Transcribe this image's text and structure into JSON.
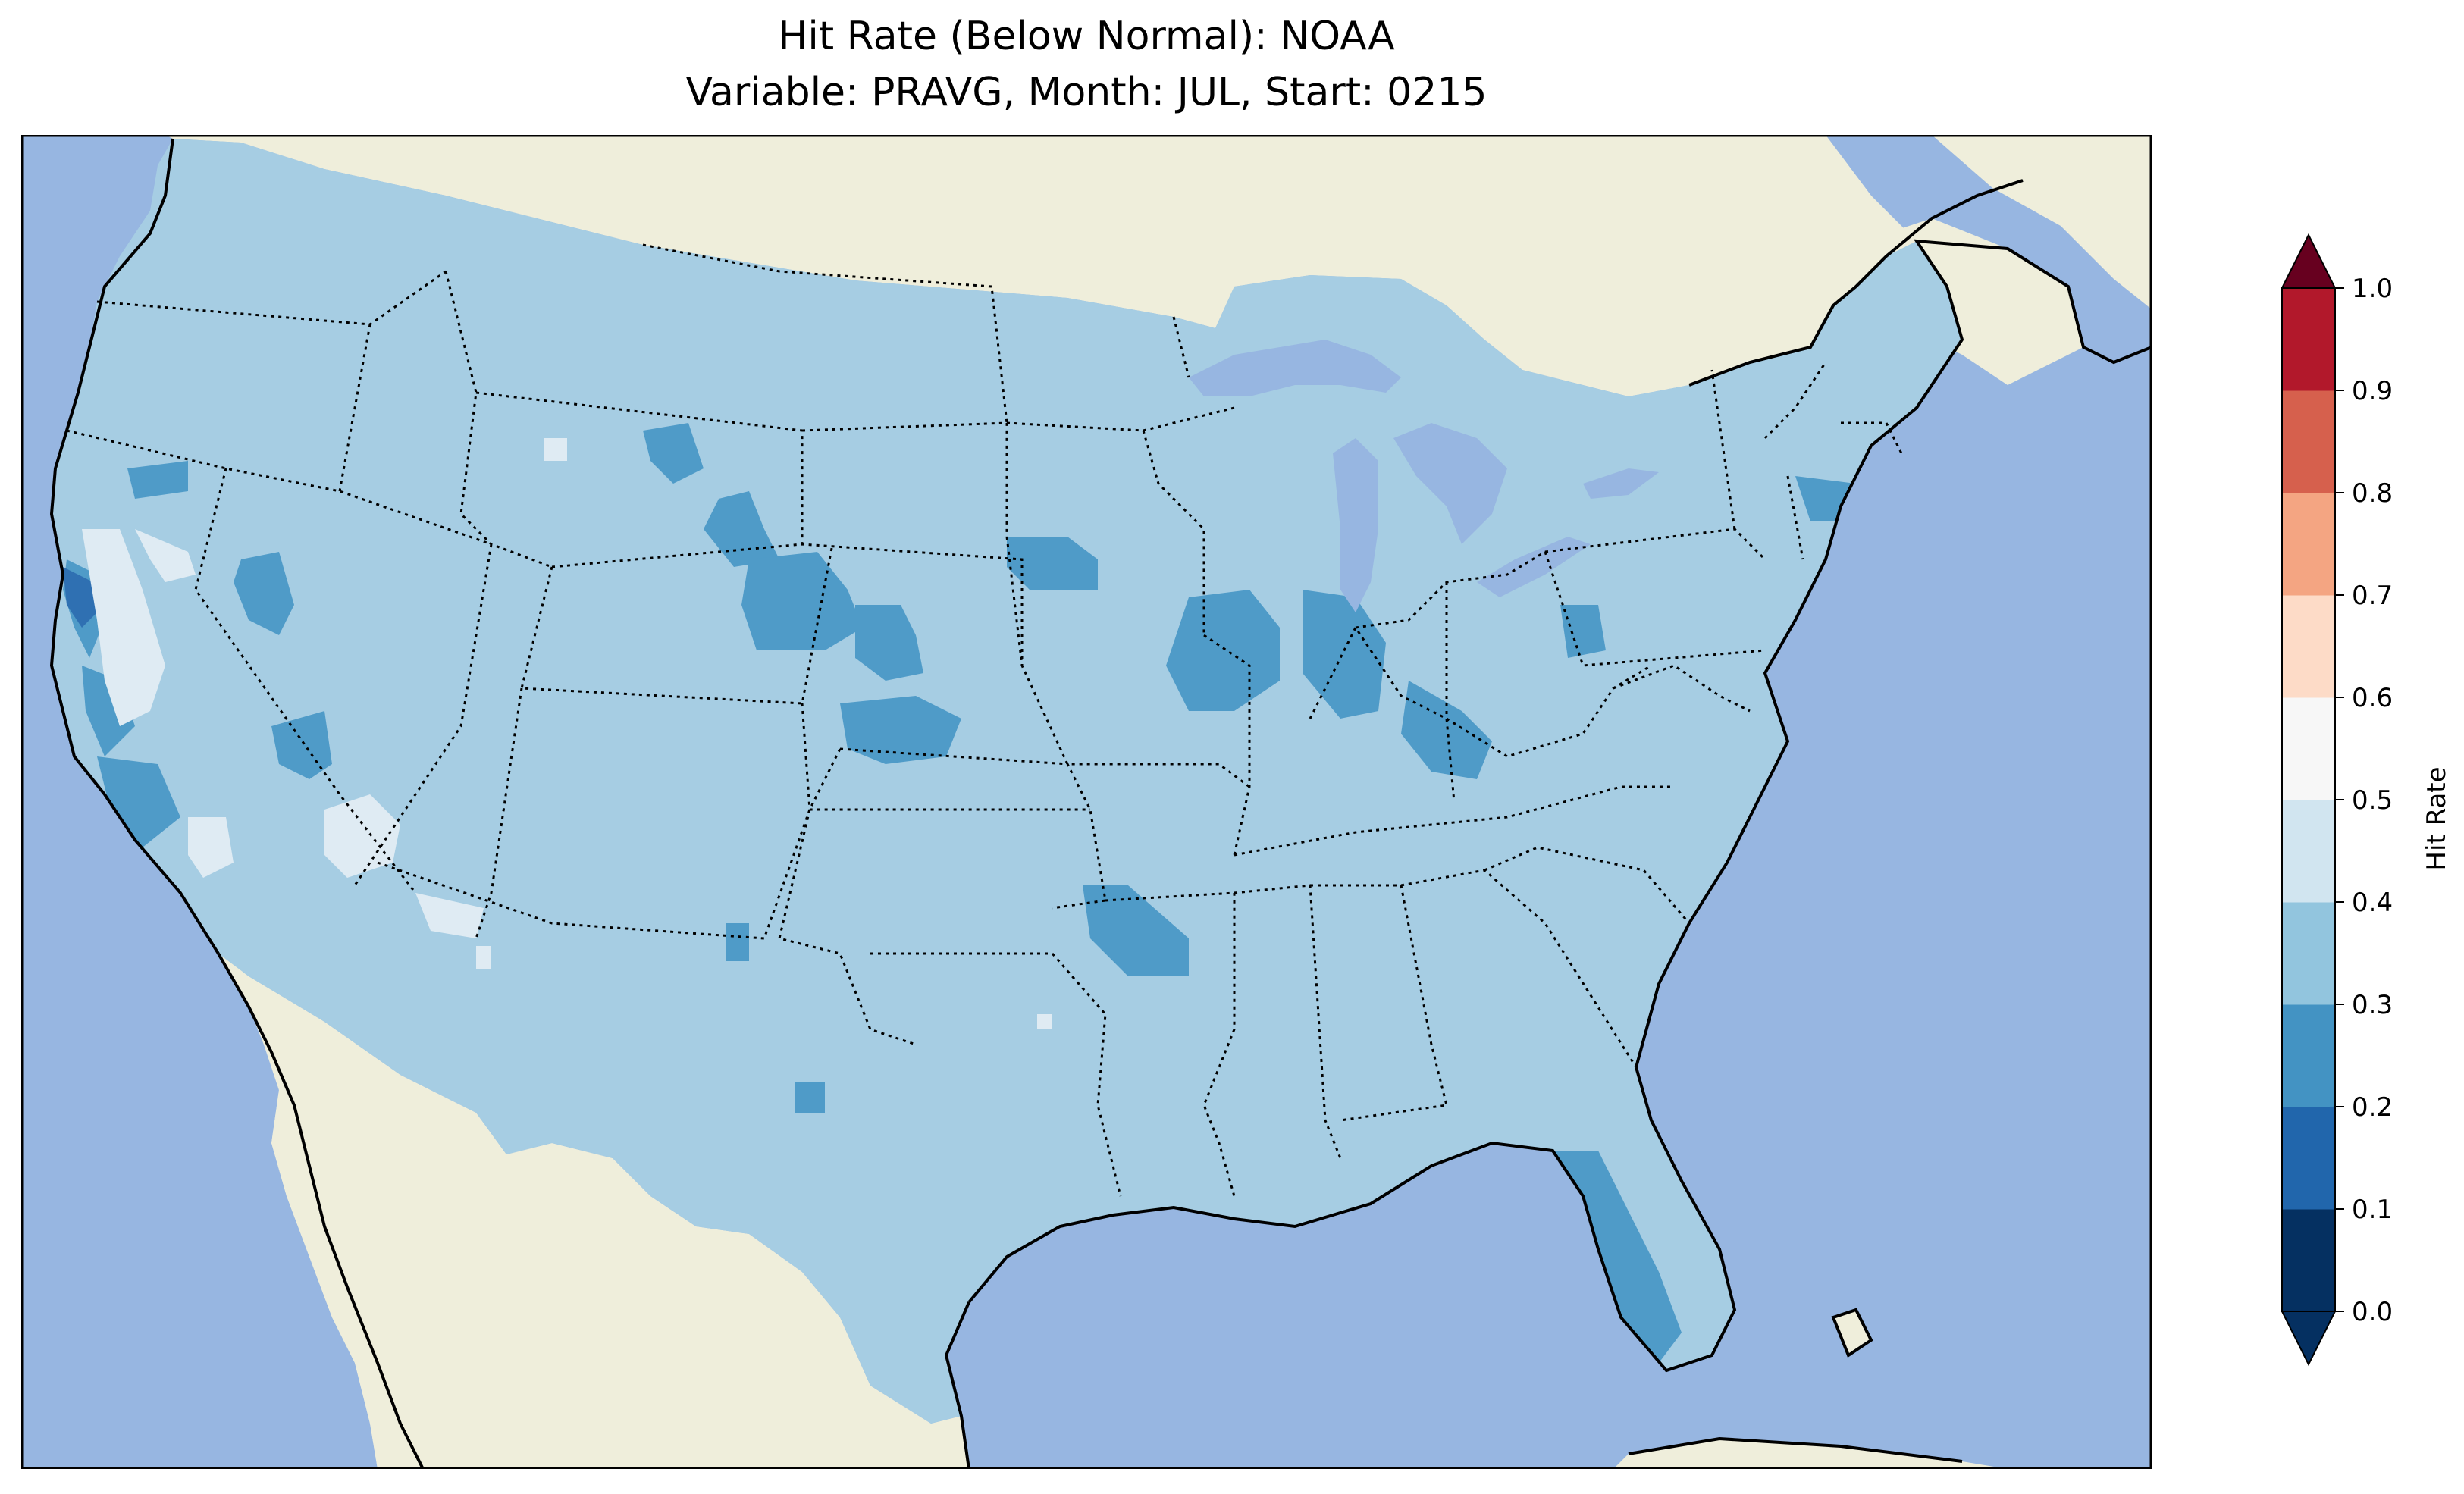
{
  "title_line1": "Hit Rate (Below Normal): NOAA",
  "title_line2": "Variable: PRAVG, Month: JUL, Start: 0215",
  "colors": {
    "ocean": "#97b6e1",
    "land": "#efeedb",
    "lakes": "#97b6e1"
  },
  "colorbar": {
    "label": "Hit Rate",
    "ticks": [
      "0.0",
      "0.1",
      "0.2",
      "0.3",
      "0.4",
      "0.5",
      "0.6",
      "0.7",
      "0.8",
      "0.9",
      "1.0"
    ],
    "bins": [
      {
        "range": [
          0.0,
          0.1
        ],
        "color": "#053061"
      },
      {
        "range": [
          0.1,
          0.2
        ],
        "color": "#2166ac"
      },
      {
        "range": [
          0.2,
          0.3
        ],
        "color": "#4393c3"
      },
      {
        "range": [
          0.3,
          0.4
        ],
        "color": "#92c5de"
      },
      {
        "range": [
          0.4,
          0.5
        ],
        "color": "#d1e5f0"
      },
      {
        "range": [
          0.5,
          0.6
        ],
        "color": "#f7f7f7"
      },
      {
        "range": [
          0.6,
          0.7
        ],
        "color": "#fddbc7"
      },
      {
        "range": [
          0.7,
          0.8
        ],
        "color": "#f4a582"
      },
      {
        "range": [
          0.8,
          0.9
        ],
        "color": "#d6604d"
      },
      {
        "range": [
          0.9,
          1.0
        ],
        "color": "#b2182b"
      }
    ],
    "under_color": "#053061",
    "over_color": "#67001f",
    "extend": "both"
  },
  "field": {
    "dominant_bin": "0.3-0.4",
    "dominant_color": "#a6cde3",
    "lower_color": "#4f9bc8",
    "lowest_color": "#2f70b2",
    "higher_color": "#dfebf3"
  }
}
